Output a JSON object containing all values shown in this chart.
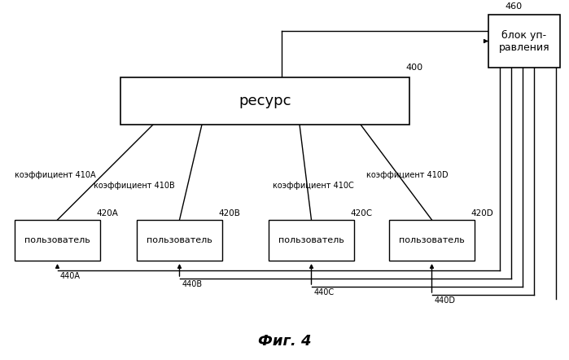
{
  "title": "Фиг. 4",
  "resource_label": "ресурс",
  "resource_id": "400",
  "control_label": "блок уп-\nравления",
  "control_id": "460",
  "user_label": "пользователь",
  "user_ids": [
    "420A",
    "420B",
    "420C",
    "420D"
  ],
  "coeff_labels": [
    "коэффициент 410A",
    "коэффициент 410B",
    "коэффициент 410C",
    "коэффициент 410D"
  ],
  "feedback_ids": [
    "440A",
    "440B",
    "440C",
    "440D"
  ],
  "bg_color": "#ffffff",
  "text_color": "#000000"
}
